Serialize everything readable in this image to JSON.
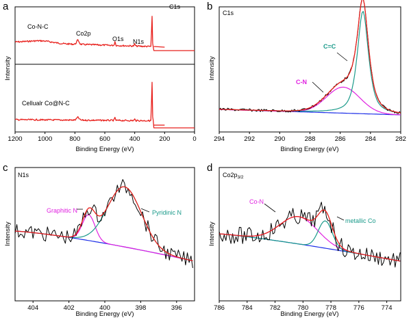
{
  "chart_data": [
    {
      "panel": "a",
      "type": "line",
      "subplots": [
        {
          "name": "top",
          "label": "Co-N-C",
          "annotations": [
            "Co2p",
            "O1s",
            "N1s",
            "C1s"
          ],
          "annotation_x": [
            780,
            532,
            400,
            285
          ]
        },
        {
          "name": "bottom",
          "label": "Cellualr Co@N-C"
        }
      ],
      "xlabel": "Binding Energy (eV)",
      "ylabel": "Intensity",
      "xlim": [
        1200,
        0
      ],
      "xticks": [
        "1200",
        "1000",
        "800",
        "600",
        "400",
        "200",
        "0"
      ],
      "series_color": "#e8201c"
    },
    {
      "panel": "b",
      "type": "line",
      "title": "C1s",
      "xlabel": "Binding Energy (eV)",
      "ylabel": "Intensity",
      "xlim": [
        294,
        282
      ],
      "xticks": [
        "294",
        "292",
        "290",
        "288",
        "286",
        "284",
        "282"
      ],
      "peaks": [
        {
          "label": "C=C",
          "center": 284.5,
          "color": "#1a9a8a"
        },
        {
          "label": "C-N",
          "center": 285.8,
          "color": "#e020e0"
        }
      ],
      "series": [
        {
          "name": "raw",
          "color": "#000000"
        },
        {
          "name": "fit",
          "color": "#e8201c"
        },
        {
          "name": "C=C",
          "color": "#1a9a8a"
        },
        {
          "name": "C-N",
          "color": "#e020e0"
        },
        {
          "name": "background",
          "color": "#1c2ee8"
        }
      ]
    },
    {
      "panel": "c",
      "type": "line",
      "title": "N1s",
      "xlabel": "Binding Energy (eV)",
      "ylabel": "Intensity",
      "xlim": [
        405,
        395
      ],
      "xticks": [
        "404",
        "402",
        "400",
        "398",
        "396"
      ],
      "peaks": [
        {
          "label": "Graphitic N",
          "center": 400.9,
          "color": "#e020e0"
        },
        {
          "label": "Pyridinic N",
          "center": 398.9,
          "color": "#1a9a8a"
        }
      ]
    },
    {
      "panel": "d",
      "type": "line",
      "title": "Co2p",
      "title_sub": "3/2",
      "xlabel": "Binding Energy (eV)",
      "ylabel": "Intensity",
      "xlim": [
        786,
        773
      ],
      "xticks": [
        "786",
        "784",
        "782",
        "780",
        "778",
        "776",
        "774"
      ],
      "peaks": [
        {
          "label": "Co-N",
          "center": 780.3,
          "color": "#e020e0"
        },
        {
          "label": "metallic Co",
          "center": 778.4,
          "color": "#1a9a8a"
        }
      ]
    }
  ]
}
